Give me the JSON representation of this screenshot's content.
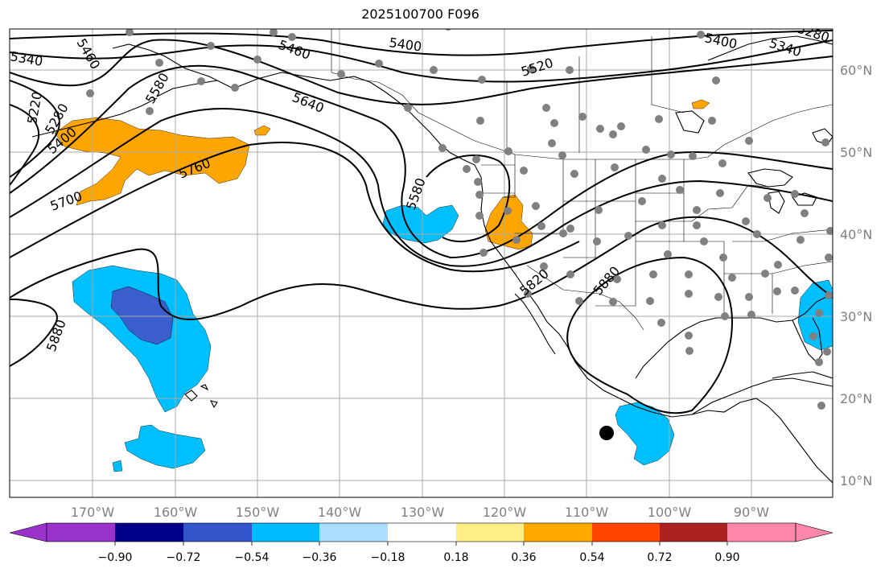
{
  "title": "2025100700 F096",
  "lat_labels": [
    "60°N",
    "50°N",
    "40°N",
    "30°N",
    "20°N",
    "10°N"
  ],
  "lat_values": [
    60,
    50,
    40,
    30,
    20,
    10
  ],
  "lon_labels": [
    "170°W",
    "160°W",
    "150°W",
    "140°W",
    "130°W",
    "120°W",
    "110°W",
    "100°W",
    "90°W"
  ],
  "lon_values": [
    -170,
    -160,
    -150,
    -140,
    -130,
    -120,
    -110,
    -100,
    -90
  ],
  "colorbar": {
    "tick_labels": [
      "−0.90",
      "−0.72",
      "−0.54",
      "−0.36",
      "−0.18",
      "0.18",
      "0.36",
      "0.54",
      "0.72",
      "0.90"
    ],
    "ticks": [
      -0.9,
      -0.72,
      -0.54,
      -0.36,
      -0.18,
      0.18,
      0.36,
      0.54,
      0.72,
      0.9
    ],
    "colors": [
      "#9933cc",
      "#000088",
      "#3355cc",
      "#00bbff",
      "#aaddff",
      "#ffffff",
      "#ffee88",
      "#ffaa00",
      "#ff4400",
      "#aa2222",
      "#ff88aa"
    ]
  },
  "contour_labels": [
    "5400",
    "5460",
    "5520",
    "5400",
    "5340",
    "5280",
    "5460",
    "5580",
    "5640",
    "5760",
    "5700",
    "5400",
    "5280",
    "5220",
    "5340",
    "5580",
    "5820",
    "5880",
    "5880"
  ],
  "fill_colors": {
    "orange": "#ffa500",
    "light_blue": "#00bfff",
    "mid_blue": "#3a5fcd"
  }
}
